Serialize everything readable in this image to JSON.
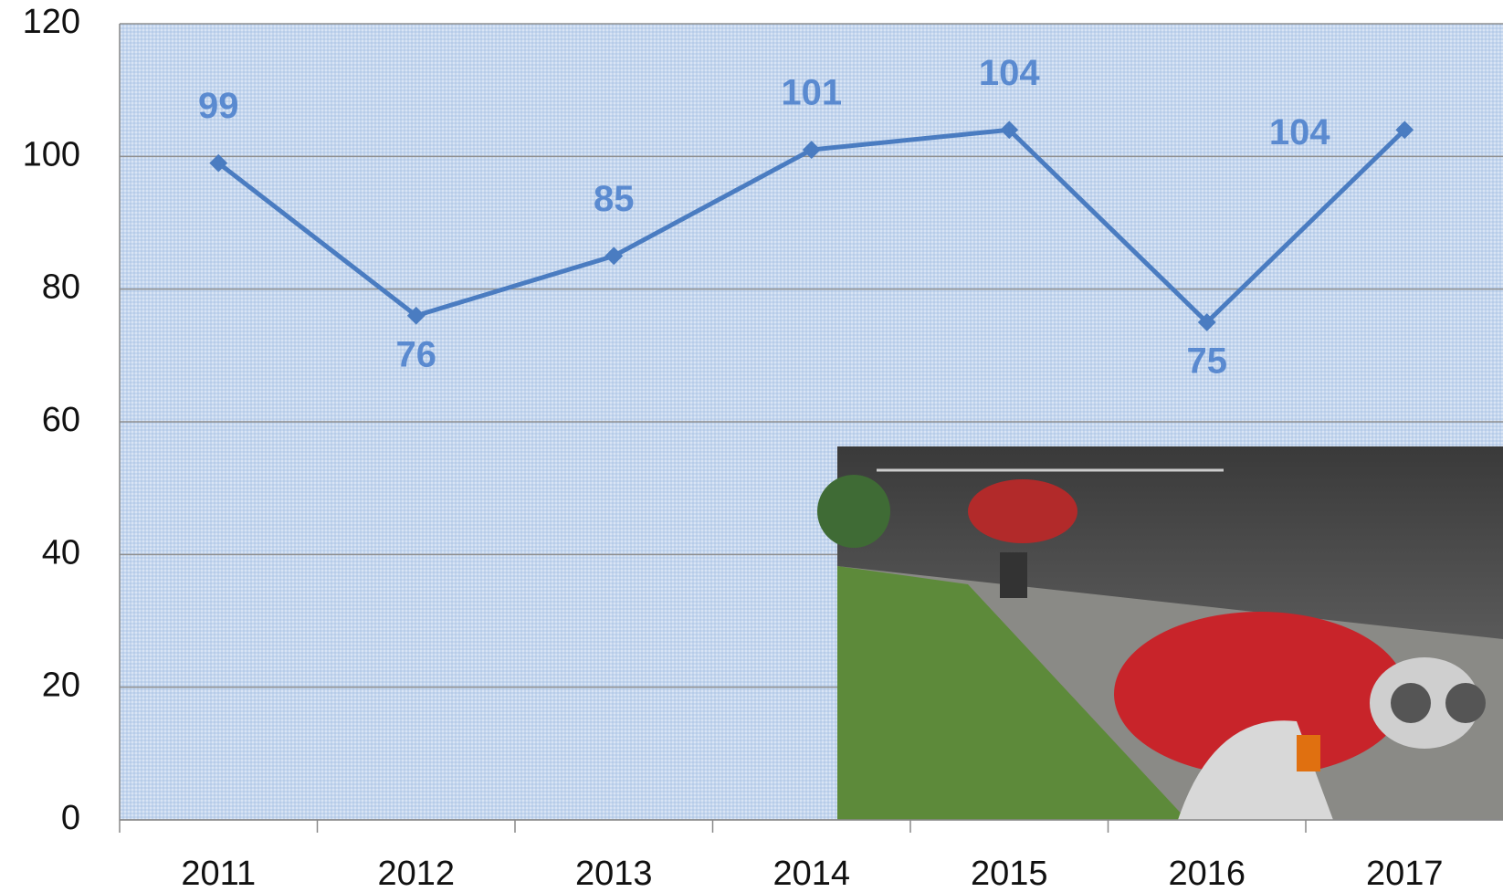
{
  "chart_data": {
    "type": "line",
    "categories": [
      "2011",
      "2012",
      "2013",
      "2014",
      "2015",
      "2016",
      "2017"
    ],
    "series": [
      {
        "color": "#4a7cc1",
        "values": [
          99,
          76,
          85,
          101,
          104,
          75,
          104
        ]
      }
    ],
    "ylim": [
      0,
      120
    ],
    "yticks": [
      0,
      20,
      40,
      60,
      80,
      100,
      120
    ],
    "grid": true
  }
}
